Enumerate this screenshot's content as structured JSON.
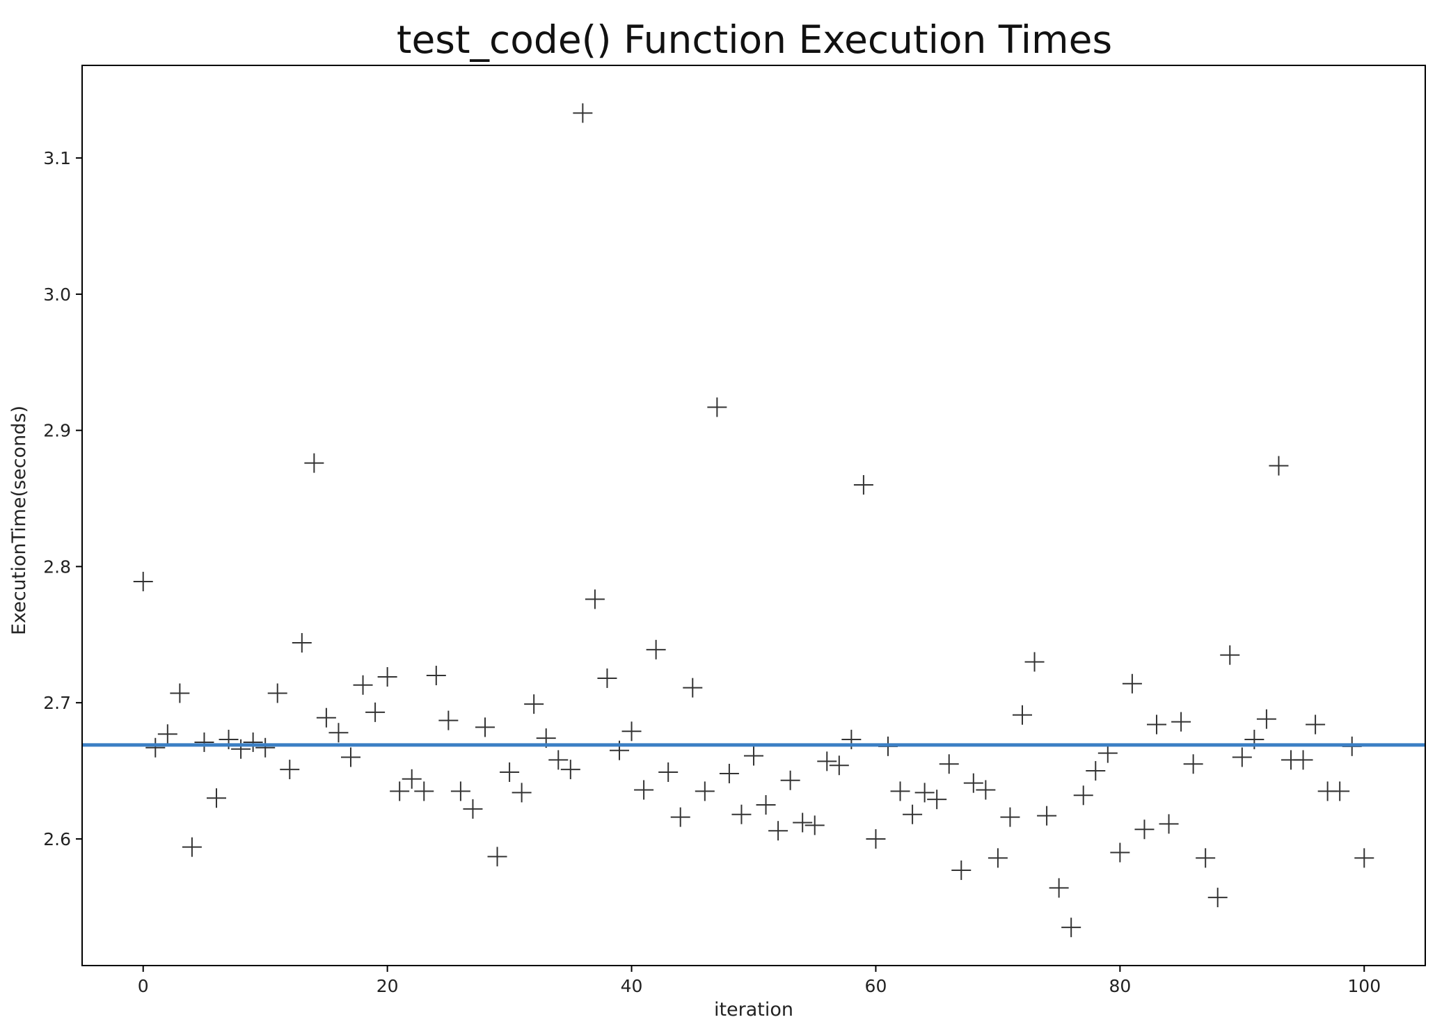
{
  "chart_data": {
    "type": "scatter",
    "title": "test_code() Function Execution Times",
    "xlabel": "iteration",
    "ylabel": "ExecutionTime(seconds)",
    "xlim": [
      -5,
      105
    ],
    "ylim": [
      2.507,
      3.168
    ],
    "xticks": [
      0,
      20,
      40,
      60,
      80,
      100
    ],
    "yticks": [
      2.6,
      2.7,
      2.8,
      2.9,
      3.0,
      3.1
    ],
    "marker": "+",
    "marker_color": "#333333",
    "grid": false,
    "legend": "none",
    "reference_line": {
      "orientation": "horizontal",
      "y": 2.669,
      "color": "#3b7fc4"
    },
    "x": [
      0,
      1,
      2,
      3,
      4,
      5,
      6,
      7,
      8,
      9,
      10,
      11,
      12,
      13,
      14,
      15,
      16,
      17,
      18,
      19,
      20,
      21,
      22,
      23,
      24,
      25,
      26,
      27,
      28,
      29,
      30,
      31,
      32,
      33,
      34,
      35,
      36,
      37,
      38,
      39,
      40,
      41,
      42,
      43,
      44,
      45,
      46,
      47,
      48,
      49,
      50,
      51,
      52,
      53,
      54,
      55,
      56,
      57,
      58,
      59,
      60,
      61,
      62,
      63,
      64,
      65,
      66,
      67,
      68,
      69,
      70,
      71,
      72,
      73,
      74,
      75,
      76,
      77,
      78,
      79,
      80,
      81,
      82,
      83,
      84,
      85,
      86,
      87,
      88,
      89,
      90,
      91,
      92,
      93,
      94,
      95,
      96,
      97,
      98,
      99,
      100
    ],
    "y": [
      2.789,
      2.667,
      2.677,
      2.707,
      2.594,
      2.671,
      2.63,
      2.673,
      2.666,
      2.671,
      2.667,
      2.707,
      2.651,
      2.744,
      2.876,
      2.689,
      2.678,
      2.66,
      2.713,
      2.693,
      2.719,
      2.635,
      2.644,
      2.635,
      2.72,
      2.687,
      2.635,
      2.622,
      2.682,
      2.587,
      2.649,
      2.634,
      2.699,
      2.674,
      2.658,
      2.651,
      3.133,
      2.776,
      2.718,
      2.665,
      2.679,
      2.636,
      2.739,
      2.649,
      2.616,
      2.711,
      2.635,
      2.917,
      2.648,
      2.618,
      2.661,
      2.625,
      2.606,
      2.643,
      2.612,
      2.61,
      2.657,
      2.654,
      2.673,
      2.86,
      2.6,
      2.668,
      2.635,
      2.618,
      2.634,
      2.629,
      2.655,
      2.577,
      2.641,
      2.636,
      2.586,
      2.616,
      2.691,
      2.73,
      2.617,
      2.564,
      2.535,
      2.632,
      2.65,
      2.663,
      2.59,
      2.714,
      2.607,
      2.684,
      2.611,
      2.686,
      2.655,
      2.586,
      2.557,
      2.735,
      2.66,
      2.673,
      2.688,
      2.874,
      2.658,
      2.658,
      2.684,
      2.635,
      2.635,
      2.668,
      2.586
    ]
  }
}
